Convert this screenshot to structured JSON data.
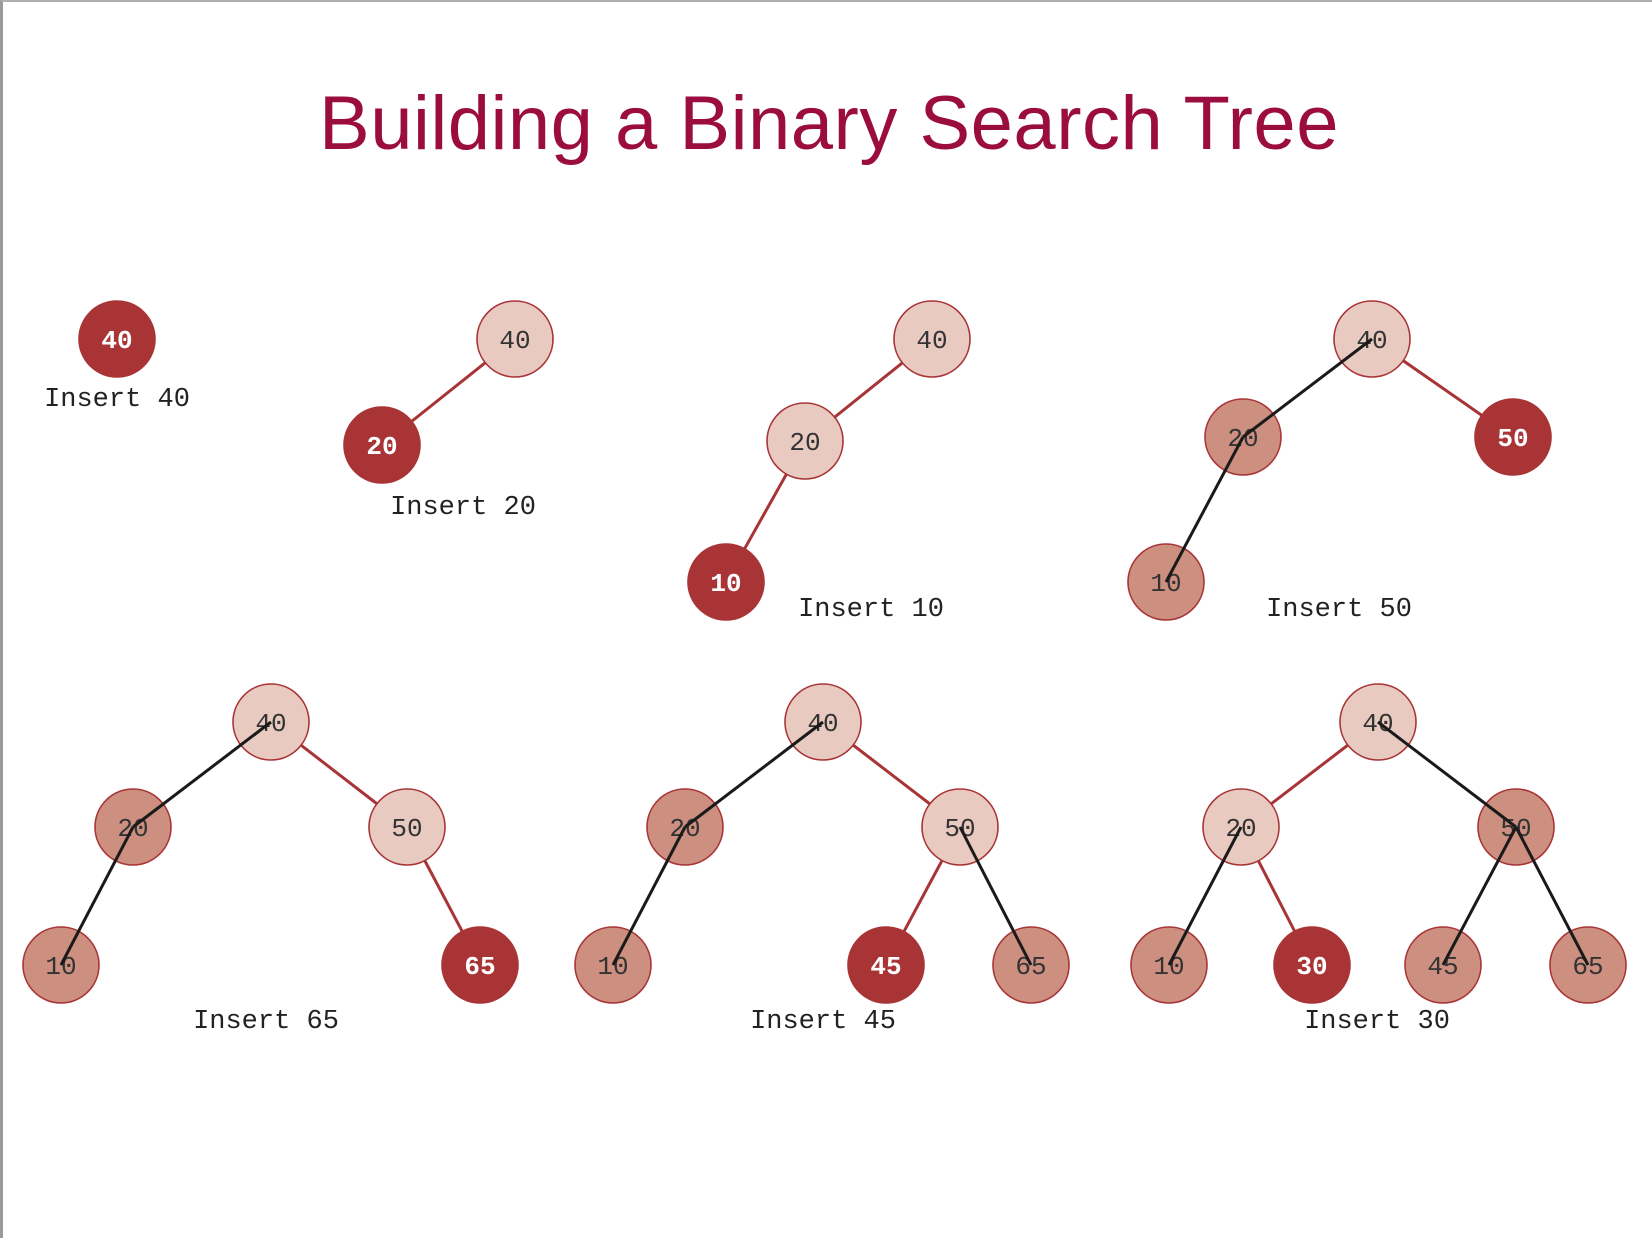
{
  "title": "Building a Binary Search Tree",
  "colors": {
    "title": "#9b0d3f",
    "new_node": "#a83436",
    "path_node": "#e9cac0",
    "visited_node": "#cc8f80",
    "node_stroke": "#a83436",
    "tree_edge": "#a83436",
    "traversal_edge": "#1a1a1a"
  },
  "steps": [
    {
      "caption": "Insert 40",
      "nodes": [
        {
          "id": "n40",
          "value": "40",
          "state": "new"
        }
      ],
      "edges": []
    },
    {
      "caption": "Insert 20",
      "nodes": [
        {
          "id": "n40",
          "value": "40",
          "state": "path"
        },
        {
          "id": "n20",
          "value": "20",
          "state": "new"
        }
      ],
      "edges": [
        {
          "from": "n40",
          "to": "n20",
          "kind": "tree"
        }
      ]
    },
    {
      "caption": "Insert 10",
      "nodes": [
        {
          "id": "n40",
          "value": "40",
          "state": "path"
        },
        {
          "id": "n20",
          "value": "20",
          "state": "path"
        },
        {
          "id": "n10",
          "value": "10",
          "state": "new"
        }
      ],
      "edges": [
        {
          "from": "n40",
          "to": "n20",
          "kind": "tree"
        },
        {
          "from": "n20",
          "to": "n10",
          "kind": "tree"
        }
      ]
    },
    {
      "caption": "Insert 50",
      "nodes": [
        {
          "id": "n40",
          "value": "40",
          "state": "path"
        },
        {
          "id": "n20",
          "value": "20",
          "state": "visited"
        },
        {
          "id": "n10",
          "value": "10",
          "state": "visited"
        },
        {
          "id": "n50",
          "value": "50",
          "state": "new"
        }
      ],
      "edges": [
        {
          "from": "n40",
          "to": "n20",
          "kind": "traversal"
        },
        {
          "from": "n20",
          "to": "n10",
          "kind": "traversal"
        },
        {
          "from": "n40",
          "to": "n50",
          "kind": "tree"
        }
      ]
    },
    {
      "caption": "Insert 65",
      "nodes": [
        {
          "id": "n40",
          "value": "40",
          "state": "path"
        },
        {
          "id": "n20",
          "value": "20",
          "state": "visited"
        },
        {
          "id": "n50",
          "value": "50",
          "state": "path"
        },
        {
          "id": "n10",
          "value": "10",
          "state": "visited"
        },
        {
          "id": "n65",
          "value": "65",
          "state": "new"
        }
      ],
      "edges": [
        {
          "from": "n40",
          "to": "n20",
          "kind": "traversal"
        },
        {
          "from": "n20",
          "to": "n10",
          "kind": "traversal"
        },
        {
          "from": "n40",
          "to": "n50",
          "kind": "tree"
        },
        {
          "from": "n50",
          "to": "n65",
          "kind": "tree"
        }
      ]
    },
    {
      "caption": "Insert 45",
      "nodes": [
        {
          "id": "n40",
          "value": "40",
          "state": "path"
        },
        {
          "id": "n20",
          "value": "20",
          "state": "visited"
        },
        {
          "id": "n50",
          "value": "50",
          "state": "path"
        },
        {
          "id": "n10",
          "value": "10",
          "state": "visited"
        },
        {
          "id": "n45",
          "value": "45",
          "state": "new"
        },
        {
          "id": "n65",
          "value": "65",
          "state": "visited"
        }
      ],
      "edges": [
        {
          "from": "n40",
          "to": "n20",
          "kind": "traversal"
        },
        {
          "from": "n20",
          "to": "n10",
          "kind": "traversal"
        },
        {
          "from": "n40",
          "to": "n50",
          "kind": "tree"
        },
        {
          "from": "n50",
          "to": "n45",
          "kind": "tree"
        },
        {
          "from": "n50",
          "to": "n65",
          "kind": "traversal"
        }
      ]
    },
    {
      "caption": "Insert 30",
      "nodes": [
        {
          "id": "n40",
          "value": "40",
          "state": "path"
        },
        {
          "id": "n20",
          "value": "20",
          "state": "path"
        },
        {
          "id": "n50",
          "value": "50",
          "state": "visited"
        },
        {
          "id": "n10",
          "value": "10",
          "state": "visited"
        },
        {
          "id": "n30",
          "value": "30",
          "state": "new"
        },
        {
          "id": "n45",
          "value": "45",
          "state": "visited"
        },
        {
          "id": "n65",
          "value": "65",
          "state": "visited"
        }
      ],
      "edges": [
        {
          "from": "n40",
          "to": "n20",
          "kind": "tree"
        },
        {
          "from": "n20",
          "to": "n10",
          "kind": "traversal"
        },
        {
          "from": "n20",
          "to": "n30",
          "kind": "tree"
        },
        {
          "from": "n40",
          "to": "n50",
          "kind": "traversal"
        },
        {
          "from": "n50",
          "to": "n45",
          "kind": "traversal"
        },
        {
          "from": "n50",
          "to": "n65",
          "kind": "traversal"
        }
      ]
    }
  ]
}
